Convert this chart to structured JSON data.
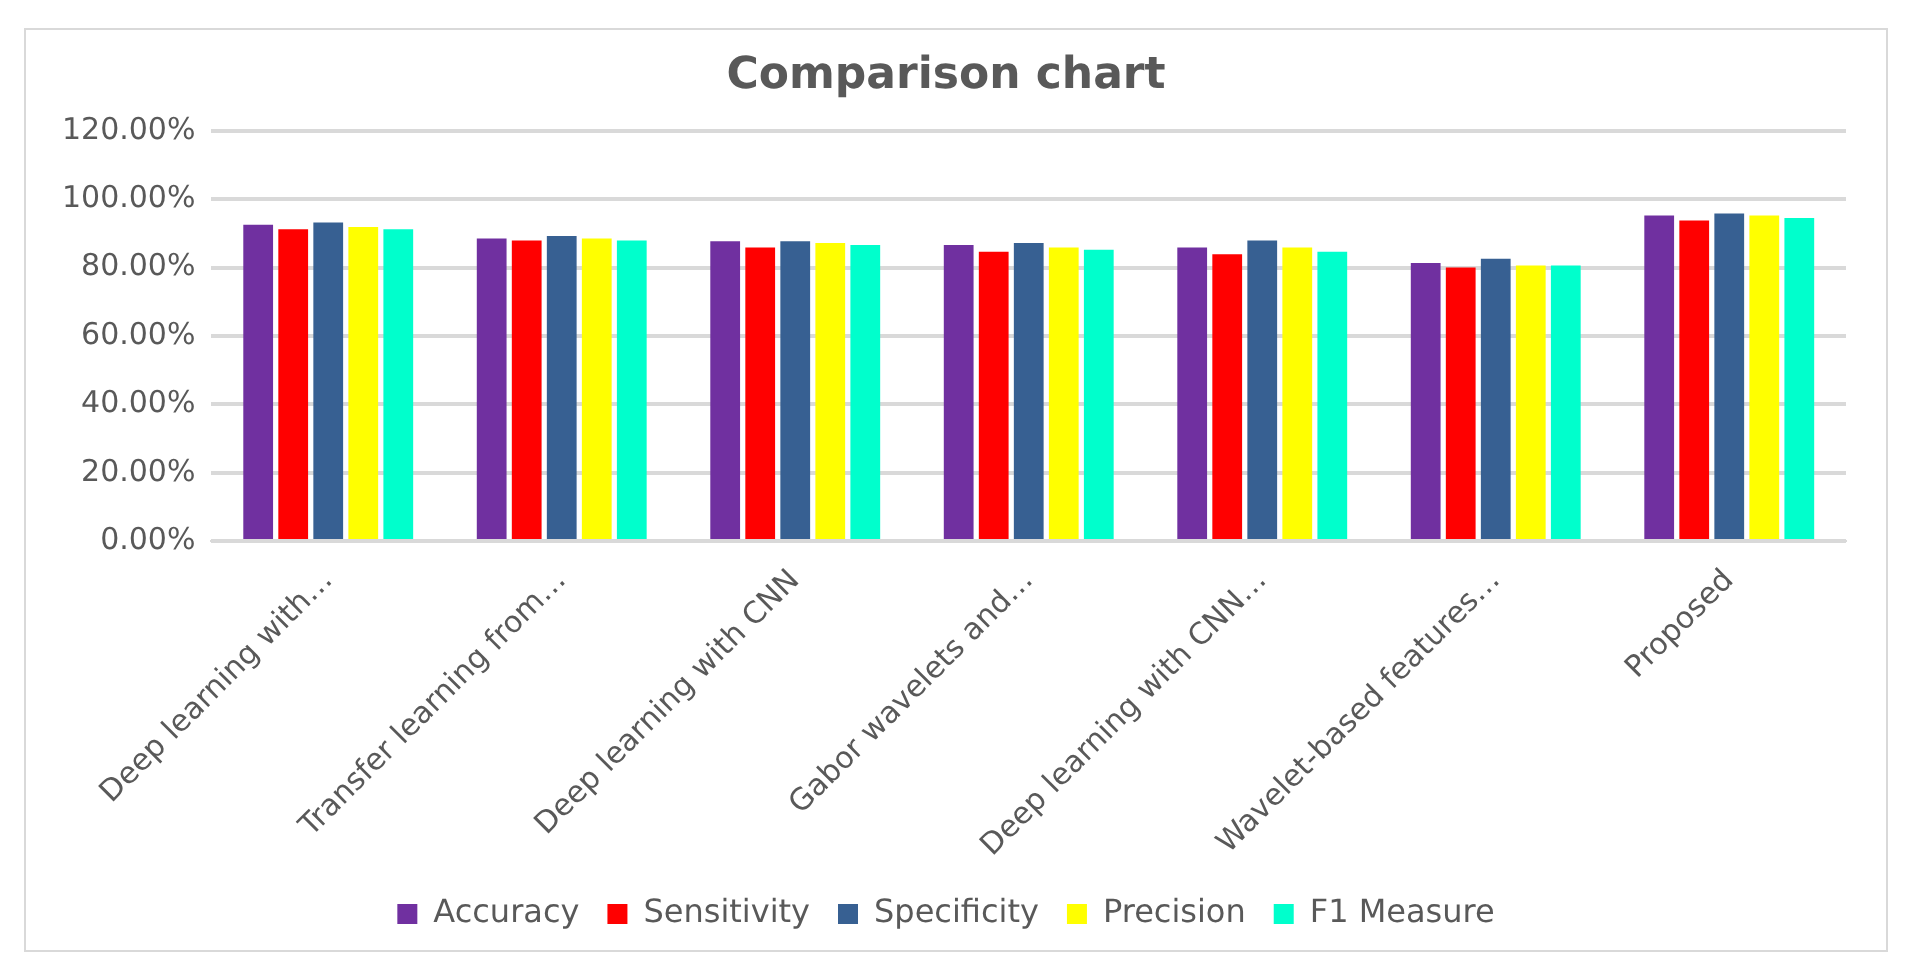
{
  "chart_data": {
    "type": "bar",
    "title": "Comparison chart",
    "categories": [
      "Deep learning with…",
      "Transfer learning from…",
      "Deep learning with CNN",
      "Gabor wavelets and…",
      "Deep learning with CNN…",
      "Wavelet-based features…",
      "Proposed"
    ],
    "series": [
      {
        "name": "Accuracy",
        "color": "#7030a0",
        "values": [
          92.5,
          88.5,
          87.7,
          86.6,
          85.9,
          81.3,
          95.2
        ]
      },
      {
        "name": "Sensitivity",
        "color": "#ff0000",
        "values": [
          91.2,
          87.9,
          85.9,
          84.6,
          83.9,
          80.0,
          93.8
        ]
      },
      {
        "name": "Specificity",
        "color": "#376092",
        "values": [
          93.2,
          89.2,
          87.7,
          87.2,
          87.9,
          82.6,
          95.8
        ]
      },
      {
        "name": "Precision",
        "color": "#ffff00",
        "values": [
          91.9,
          88.5,
          87.2,
          85.9,
          85.9,
          80.6,
          95.2
        ]
      },
      {
        "name": "F1 Measure",
        "color": "#00ffcc",
        "values": [
          91.2,
          87.9,
          86.6,
          85.2,
          84.6,
          80.6,
          94.5
        ]
      }
    ],
    "ylim": [
      0,
      120
    ],
    "yticks": [
      {
        "value": 0,
        "label": "0.00%"
      },
      {
        "value": 20,
        "label": "20.00%"
      },
      {
        "value": 40,
        "label": "40.00%"
      },
      {
        "value": 60,
        "label": "60.00%"
      },
      {
        "value": 80,
        "label": "80.00%"
      },
      {
        "value": 100,
        "label": "100.00%"
      },
      {
        "value": 120,
        "label": "120.00%"
      }
    ],
    "grid": "y",
    "legend": "bottom"
  }
}
